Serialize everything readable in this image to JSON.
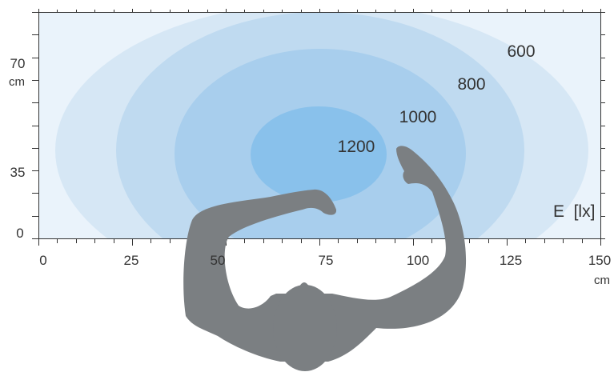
{
  "diagram": {
    "x_axis": {
      "ticks": [
        "0",
        "25",
        "50",
        "75",
        "100",
        "125",
        "150"
      ],
      "unit": "cm"
    },
    "y_axis": {
      "ticks": [
        "0",
        "35",
        "70"
      ],
      "unit": "cm"
    },
    "contour_labels": [
      "600",
      "800",
      "1000",
      "1200"
    ],
    "legend_label": "E",
    "legend_unit": "[lx]",
    "colors": {
      "background": "#eaf3fb",
      "zone_600": "#d6e7f5",
      "zone_800": "#bfdaf0",
      "zone_1000": "#a8ceed",
      "zone_1200": "#89c1eb",
      "silhouette": "#7b7f82",
      "axis": "#333333"
    },
    "icons": [
      "person-silhouette-icon"
    ]
  }
}
